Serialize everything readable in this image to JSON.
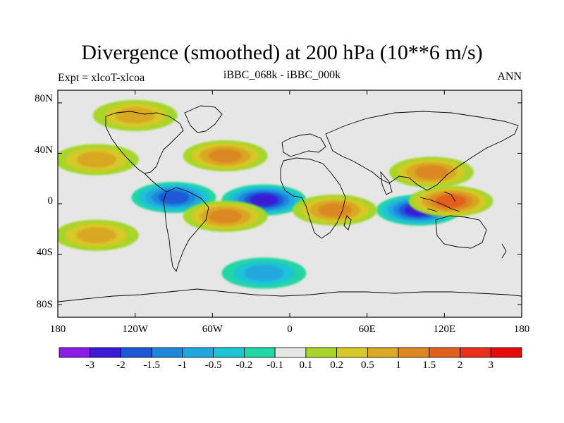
{
  "title": "Divergence (smoothed) at 200 hPa (10**6 m/s)",
  "subtitle_left": "Expt = xlcoT-xlcoa",
  "subtitle_center": "iBBC_068k - iBBC_000k",
  "subtitle_right": "ANN",
  "lat_labels": [
    "80N",
    "40N",
    "0",
    "40S",
    "80S"
  ],
  "lon_labels": [
    "180",
    "120W",
    "60W",
    "0",
    "60E",
    "120E",
    "180"
  ],
  "colorbar": {
    "labels": [
      "-3",
      "-2",
      "-1.5",
      "-1",
      "-0.5",
      "-0.2",
      "-0.1",
      "0.1",
      "0.2",
      "0.5",
      "1",
      "1.5",
      "2",
      "3"
    ],
    "colors": [
      "#8b1ce6",
      "#3b1bd6",
      "#1a58d8",
      "#1f86dc",
      "#20a8de",
      "#1cc4d6",
      "#20d6a4",
      "#e6e6e6",
      "#a6d62a",
      "#d6c826",
      "#d9a824",
      "#dc8820",
      "#e2601c",
      "#e8301a",
      "#e60a0a"
    ]
  },
  "chart_data": {
    "type": "heatmap",
    "title": "Divergence (smoothed) at 200 hPa (10**6 m/s)",
    "variable": "200 hPa divergence difference",
    "units": "10**6 m/s",
    "lon_range": [
      -180,
      180
    ],
    "lat_range": [
      -90,
      90
    ],
    "levels": [
      -3,
      -2,
      -1.5,
      -1,
      -0.5,
      -0.2,
      -0.1,
      0.1,
      0.2,
      0.5,
      1,
      1.5,
      2,
      3
    ],
    "features": [
      {
        "name": "tropical Pacific negative band",
        "lon": -90,
        "lat": 5,
        "value": -1.5
      },
      {
        "name": "tropical Atlantic minimum",
        "lon": -20,
        "lat": 3,
        "value": -2
      },
      {
        "name": "maritime continent negative",
        "lon": 100,
        "lat": -5,
        "value": -2
      },
      {
        "name": "maritime continent positive",
        "lon": 125,
        "lat": 2,
        "value": 1.5
      },
      {
        "name": "north Pacific positive",
        "lon": -150,
        "lat": 35,
        "value": 0.5
      },
      {
        "name": "north Atlantic positive",
        "lon": -50,
        "lat": 38,
        "value": 1
      },
      {
        "name": "south America positive",
        "lon": -50,
        "lat": -10,
        "value": 1
      },
      {
        "name": "africa positive",
        "lon": 35,
        "lat": -5,
        "value": 1
      },
      {
        "name": "eastern Asia positive",
        "lon": 110,
        "lat": 25,
        "value": 1
      },
      {
        "name": "south Pacific positive",
        "lon": -150,
        "lat": -25,
        "value": 0.5
      },
      {
        "name": "southern ocean negative",
        "lon": -20,
        "lat": -55,
        "value": -0.5
      },
      {
        "name": "arctic positive",
        "lon": -120,
        "lat": 70,
        "value": 0.5
      }
    ]
  }
}
